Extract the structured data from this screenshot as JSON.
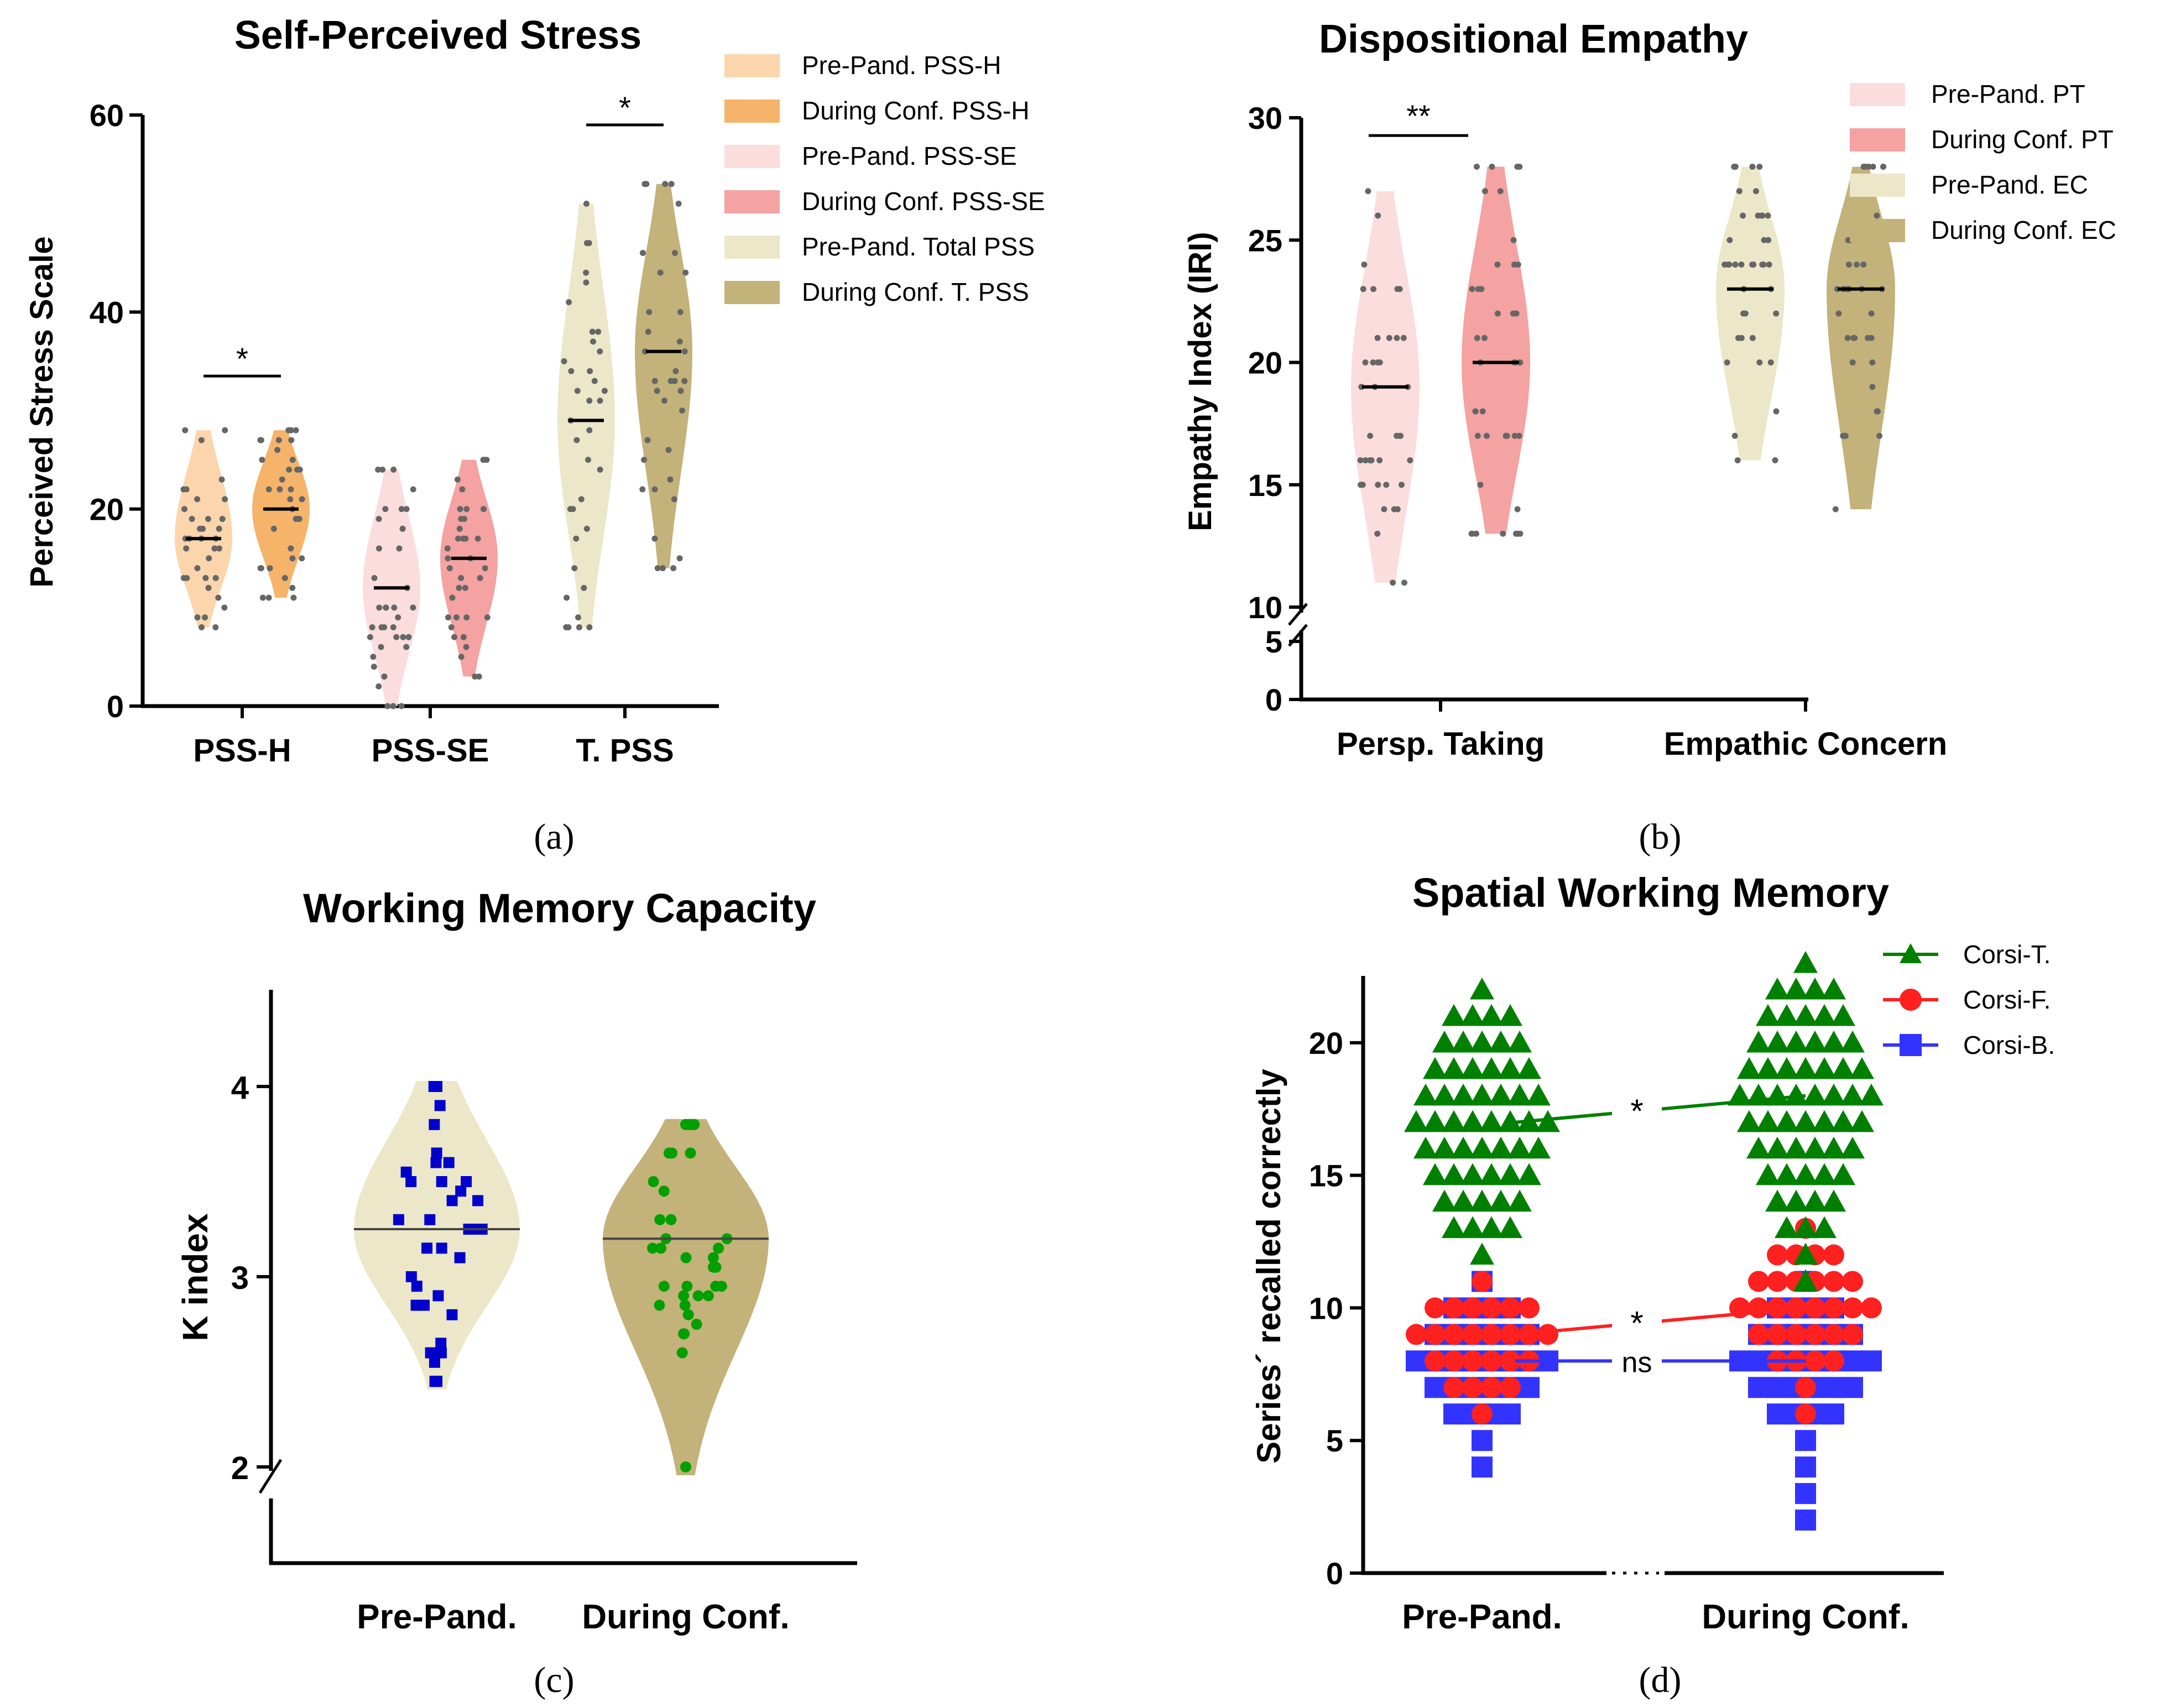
{
  "figure_labels": {
    "a": "(a)",
    "b": "(b)",
    "c": "(c)",
    "d": "(d)"
  },
  "chart_data": [
    {
      "id": "a",
      "type": "violin",
      "title": "Self-Perceived Stress",
      "ylabel": "Perceived Stress Scale",
      "xlabel": "",
      "ylim": [
        0,
        60
      ],
      "yticks": [
        0,
        20,
        40,
        60
      ],
      "groups": [
        "PSS-H",
        "PSS-SE",
        "T. PSS"
      ],
      "legend_position": "top-right",
      "series": [
        {
          "name": "Pre-Pand. PSS-H",
          "group": "PSS-H",
          "color": "#FBD5AC",
          "median": 17,
          "min": 8,
          "max": 28
        },
        {
          "name": "During Conf. PSS-H",
          "group": "PSS-H",
          "color": "#F6B36A",
          "median": 20,
          "min": 11,
          "max": 28
        },
        {
          "name": "Pre-Pand. PSS-SE",
          "group": "PSS-SE",
          "color": "#FBDDDD",
          "median": 12,
          "min": 0,
          "max": 24
        },
        {
          "name": "During Conf. PSS-SE",
          "group": "PSS-SE",
          "color": "#F4A2A2",
          "median": 15,
          "min": 3,
          "max": 25
        },
        {
          "name": "Pre-Pand. Total PSS",
          "group": "T. PSS",
          "color": "#EDE7C9",
          "median": 29,
          "min": 8,
          "max": 51
        },
        {
          "name": "During Conf. T. PSS",
          "group": "T. PSS",
          "color": "#C3B27A",
          "median": 36,
          "min": 14,
          "max": 53
        }
      ],
      "annotations": [
        {
          "text": "*",
          "group": "PSS-H",
          "y": 33.5
        },
        {
          "text": "*",
          "group": "T. PSS",
          "y": 59
        }
      ]
    },
    {
      "id": "b",
      "type": "violin",
      "title": "Dispositional Empathy",
      "ylabel": "Empathy Index (IRI)",
      "xlabel": "",
      "ylim": [
        0,
        30
      ],
      "axis_break": [
        5,
        10
      ],
      "yticks": [
        0,
        5,
        10,
        15,
        20,
        25,
        30
      ],
      "groups": [
        "Persp. Taking",
        "Empathic Concern"
      ],
      "legend_position": "top-right",
      "series": [
        {
          "name": "Pre-Pand. PT",
          "group": "Persp. Taking",
          "color": "#FBDDDD",
          "median": 19,
          "min": 11,
          "max": 27
        },
        {
          "name": "During Conf. PT",
          "group": "Persp. Taking",
          "color": "#F4A2A2",
          "median": 20,
          "min": 13,
          "max": 28
        },
        {
          "name": "Pre-Pand. EC",
          "group": "Empathic Concern",
          "color": "#EDE7C9",
          "median": 23,
          "min": 16,
          "max": 28
        },
        {
          "name": "During Conf. EC",
          "group": "Empathic Concern",
          "color": "#C3B27A",
          "median": 23,
          "min": 14,
          "max": 28
        }
      ],
      "annotations": [
        {
          "text": "**",
          "group": "Persp. Taking",
          "y": 29.5
        }
      ]
    },
    {
      "id": "c",
      "type": "violin",
      "title": "Working Memory Capacity",
      "ylabel": "K index",
      "xlabel": "",
      "ylim": [
        2,
        4.5
      ],
      "axis_break": [
        1.5,
        2
      ],
      "yticks": [
        2,
        3,
        4
      ],
      "categories": [
        "Pre-Pand.",
        "During Conf."
      ],
      "series": [
        {
          "name": "Pre-Pand.",
          "color": "#EDE7C9",
          "marker": "square",
          "marker_color": "#0000CC",
          "median": 3.25,
          "min": 2.45,
          "max": 4.0
        },
        {
          "name": "During Conf.",
          "color": "#C3B27A",
          "marker": "circle",
          "marker_color": "#00A000",
          "median": 3.2,
          "min": 2.0,
          "max": 3.8
        }
      ]
    },
    {
      "id": "d",
      "type": "scatter",
      "title": "Spatial Working Memory",
      "ylabel": "Series´ recalled correctly",
      "xlabel": "",
      "ylim": [
        0,
        23
      ],
      "yticks": [
        0,
        5,
        10,
        15,
        20
      ],
      "categories": [
        "Pre-Pand.",
        "During Conf."
      ],
      "legend_position": "top-right",
      "series": [
        {
          "name": "Corsi-T.",
          "marker": "triangle",
          "color": "#008000",
          "median_pre": 17,
          "median_during": 18,
          "min_pre": 12,
          "max_pre": 22,
          "min_during": 11,
          "max_during": 23
        },
        {
          "name": "Corsi-F.",
          "marker": "circle",
          "color": "#FF2020",
          "median_pre": 9,
          "median_during": 10,
          "min_pre": 6,
          "max_pre": 11,
          "min_during": 6,
          "max_during": 13
        },
        {
          "name": "Corsi-B.",
          "marker": "square",
          "color": "#3333FF",
          "median_pre": 8,
          "median_during": 8,
          "min_pre": 4,
          "max_pre": 11,
          "min_during": 2,
          "max_during": 11
        }
      ],
      "annotations": [
        {
          "text": "*",
          "y": 17.5
        },
        {
          "text": "*",
          "y": 9.5
        },
        {
          "text": "ns",
          "y": 8
        }
      ]
    }
  ]
}
